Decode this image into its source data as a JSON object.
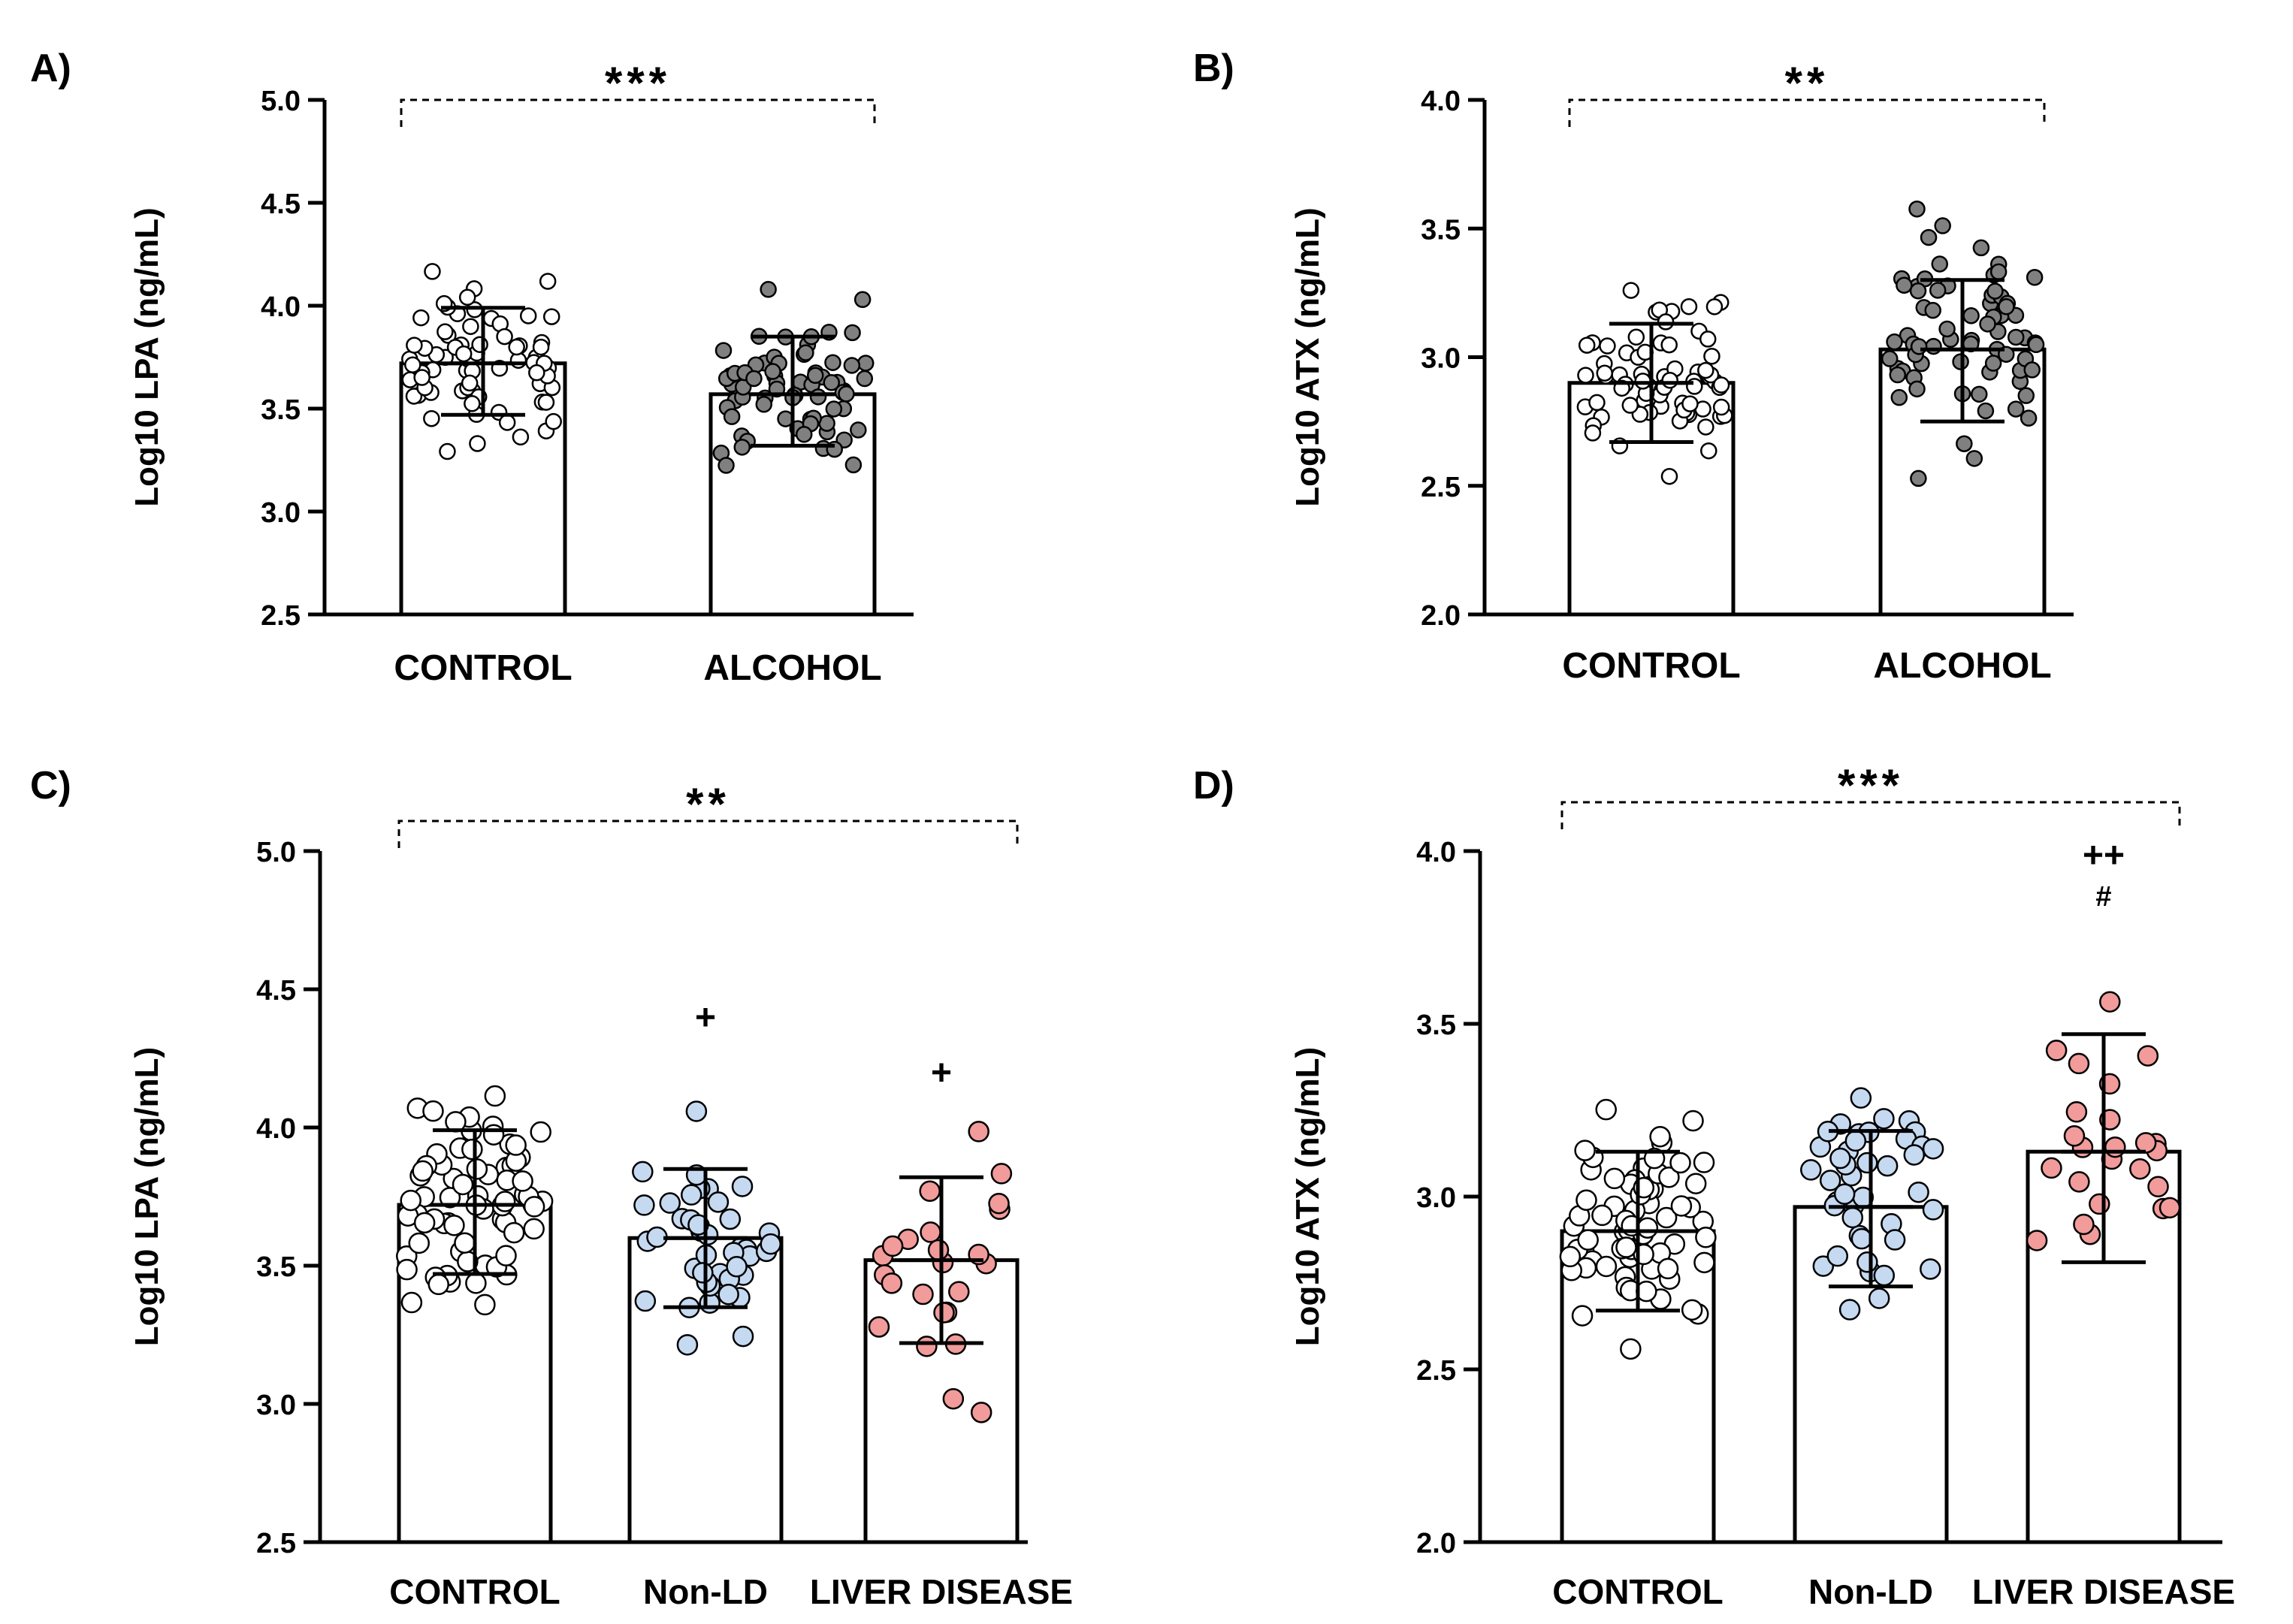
{
  "chart_data": [
    {
      "panel": "A)",
      "type": "bar",
      "ylabel": "Log10 LPA (ng/mL)",
      "ylim": [
        2.5,
        5.0
      ],
      "yticks": [
        "2.5",
        "3.0",
        "3.5",
        "4.0",
        "4.5",
        "5.0"
      ],
      "categories": [
        "CONTROL",
        "ALCOHOL"
      ],
      "means": [
        3.72,
        3.57
      ],
      "sd": [
        [
          3.47,
          3.99
        ],
        [
          3.32,
          3.85
        ]
      ],
      "fill_colors": [
        "#ffffff",
        "#808080"
      ],
      "bracket": {
        "label": "***",
        "from": 0,
        "to": 1
      },
      "marks": []
    },
    {
      "panel": "B)",
      "type": "bar",
      "ylabel": "Log10 ATX (ng/mL)",
      "ylim": [
        2.0,
        4.0
      ],
      "yticks": [
        "2.0",
        "2.5",
        "3.0",
        "3.5",
        "4.0"
      ],
      "categories": [
        "CONTROL",
        "ALCOHOL"
      ],
      "means": [
        2.9,
        3.03
      ],
      "sd": [
        [
          2.67,
          3.13
        ],
        [
          2.75,
          3.3
        ]
      ],
      "fill_colors": [
        "#ffffff",
        "#808080"
      ],
      "bracket": {
        "label": "**",
        "from": 0,
        "to": 1
      },
      "marks": []
    },
    {
      "panel": "C)",
      "type": "bar",
      "ylabel": "Log10 LPA (ng/mL)",
      "ylim": [
        2.5,
        5.0
      ],
      "yticks": [
        "2.5",
        "3.0",
        "3.5",
        "4.0",
        "4.5",
        "5.0"
      ],
      "categories": [
        "CONTROL",
        "Non-LD",
        "LIVER DISEASE"
      ],
      "means": [
        3.72,
        3.6,
        3.52
      ],
      "sd": [
        [
          3.47,
          3.99
        ],
        [
          3.35,
          3.85
        ],
        [
          3.22,
          3.82
        ]
      ],
      "fill_colors": [
        "#ffffff",
        "#c5d9f1",
        "#f19b9b"
      ],
      "bracket": {
        "label": "**",
        "from": 0,
        "to": 2
      },
      "marks": [
        {
          "group": 1,
          "label": "+",
          "y": 4.4
        },
        {
          "group": 2,
          "label": "+",
          "y": 4.2
        }
      ]
    },
    {
      "panel": "D)",
      "type": "bar",
      "ylabel": "Log10 ATX (ng/mL)",
      "ylim": [
        2.0,
        4.0
      ],
      "yticks": [
        "2.0",
        "2.5",
        "3.0",
        "3.5",
        "4.0"
      ],
      "categories": [
        "CONTROL",
        "Non-LD",
        "LIVER DISEASE"
      ],
      "means": [
        2.9,
        2.97,
        3.13
      ],
      "sd": [
        [
          2.67,
          3.13
        ],
        [
          2.74,
          3.19
        ],
        [
          2.81,
          3.47
        ]
      ],
      "fill_colors": [
        "#ffffff",
        "#c5d9f1",
        "#f19b9b"
      ],
      "bracket": {
        "label": "***",
        "from": 0,
        "to": 2
      },
      "marks": [
        {
          "group": 2,
          "label": "#",
          "y": 3.87
        },
        {
          "group": 2,
          "label": "++",
          "y": 3.99
        }
      ]
    }
  ]
}
